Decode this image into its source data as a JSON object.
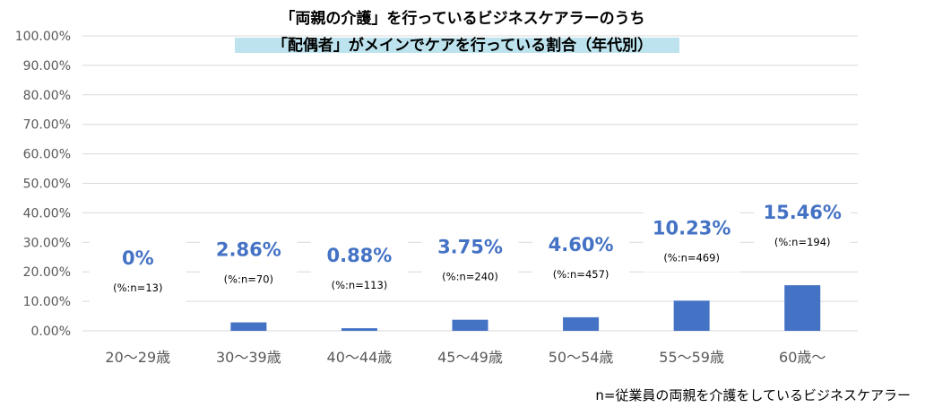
{
  "chart_data": {
    "type": "bar",
    "title_lines": [
      "「両親の介護」を行っているビジネスケアラーのうち",
      "「配偶者」がメインでケアを行っている割合（年代別）"
    ],
    "categories": [
      "20～29歳",
      "30～39歳",
      "40～44歳",
      "45～49歳",
      "50～54歳",
      "55～59歳",
      "60歳～"
    ],
    "values": [
      0,
      2.86,
      0.88,
      3.75,
      4.6,
      10.23,
      15.46
    ],
    "value_labels": [
      "0%",
      "2.86%",
      "0.88%",
      "3.75%",
      "4.60%",
      "10.23%",
      "15.46%"
    ],
    "n_labels": [
      "(%:n=13)",
      "(%:n=70)",
      "(%:n=113)",
      "(%:n=240)",
      "(%:n=457)",
      "(%:n=469)",
      "(%:n=194)"
    ],
    "y_ticks": [
      "0.00%",
      "10.00%",
      "20.00%",
      "30.00%",
      "40.00%",
      "50.00%",
      "60.00%",
      "70.00%",
      "80.00%",
      "90.00%",
      "100.00%"
    ],
    "ylim": [
      0,
      100
    ],
    "grid": true,
    "footnote": "n=従業員の両親を介護をしているビジネスケアラー",
    "colors": {
      "bar": "#4472C4",
      "label": "#4472C4",
      "grid": "#D9D9D9",
      "title_highlight": "#BDE3EE"
    }
  }
}
